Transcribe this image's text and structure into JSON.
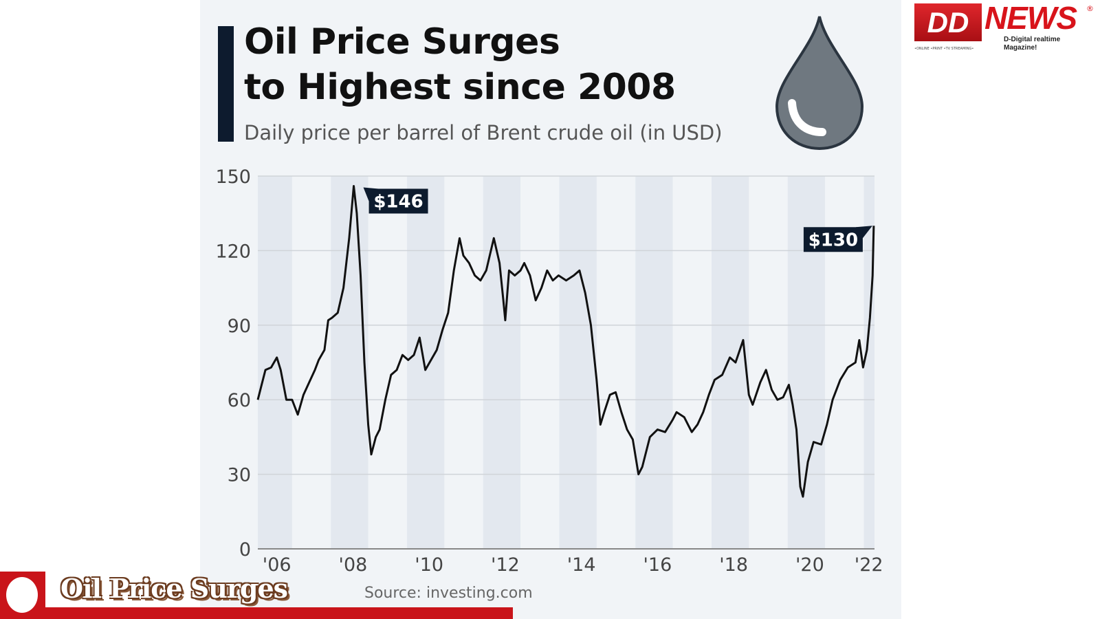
{
  "header": {
    "title_line1": "Oil Price Surges",
    "title_line2": "to Highest since 2008",
    "subtitle": "Daily price per barrel of Brent crude oil (in USD)"
  },
  "source": "Source: investing.com",
  "logo": {
    "dd": "DD",
    "news": "NEWS",
    "registered": "®",
    "tagline": "D-Digital realtime Magazine!",
    "channels": "•ONLINE •PRINT •TV STREAMING•"
  },
  "ticker": {
    "text": "Oil Price Surges"
  },
  "colors": {
    "line": "#111111",
    "accent": "#0d1b2e",
    "red": "#c9141a",
    "panel": "#f1f4f7"
  },
  "chart_data": {
    "type": "line",
    "title": "Oil Price Surges to Highest since 2008",
    "subtitle": "Daily price per barrel of Brent crude oil (in USD)",
    "xlabel": "",
    "ylabel": "",
    "xlim": [
      2006.0,
      2022.2
    ],
    "ylim": [
      0,
      150
    ],
    "yticks": [
      0,
      30,
      60,
      90,
      120,
      150
    ],
    "xtick_labels": [
      "'06",
      "'08",
      "'10",
      "'12",
      "'14",
      "'16",
      "'18",
      "'20",
      "'22"
    ],
    "xtick_years": [
      2006.5,
      2008.5,
      2010.5,
      2012.5,
      2014.5,
      2016.5,
      2018.5,
      2020.5,
      2022.05
    ],
    "grid": true,
    "annotations": [
      {
        "label": "$146",
        "x": 2008.52,
        "y": 146
      },
      {
        "label": "$130",
        "x": 2022.18,
        "y": 130
      }
    ],
    "series": [
      {
        "name": "Brent crude",
        "x": [
          2006.0,
          2006.1,
          2006.2,
          2006.35,
          2006.5,
          2006.6,
          2006.75,
          2006.9,
          2007.05,
          2007.2,
          2007.35,
          2007.5,
          2007.6,
          2007.75,
          2007.85,
          2007.95,
          2008.1,
          2008.25,
          2008.4,
          2008.52,
          2008.6,
          2008.7,
          2008.8,
          2008.9,
          2008.98,
          2009.1,
          2009.2,
          2009.35,
          2009.5,
          2009.65,
          2009.8,
          2009.95,
          2010.1,
          2010.25,
          2010.4,
          2010.55,
          2010.7,
          2010.85,
          2011.0,
          2011.15,
          2011.3,
          2011.4,
          2011.55,
          2011.7,
          2011.85,
          2012.0,
          2012.2,
          2012.35,
          2012.45,
          2012.5,
          2012.6,
          2012.75,
          2012.9,
          2013.0,
          2013.15,
          2013.3,
          2013.45,
          2013.6,
          2013.75,
          2013.9,
          2014.1,
          2014.3,
          2014.45,
          2014.6,
          2014.75,
          2014.9,
          2015.0,
          2015.1,
          2015.25,
          2015.4,
          2015.55,
          2015.7,
          2015.85,
          2016.0,
          2016.1,
          2016.3,
          2016.5,
          2016.7,
          2016.9,
          2017.0,
          2017.2,
          2017.4,
          2017.55,
          2017.7,
          2017.85,
          2018.0,
          2018.2,
          2018.4,
          2018.55,
          2018.75,
          2018.9,
          2019.0,
          2019.2,
          2019.35,
          2019.5,
          2019.65,
          2019.8,
          2019.95,
          2020.05,
          2020.15,
          2020.25,
          2020.32,
          2020.45,
          2020.6,
          2020.8,
          2020.95,
          2021.1,
          2021.3,
          2021.5,
          2021.7,
          2021.8,
          2021.9,
          2022.0,
          2022.08,
          2022.15,
          2022.18
        ],
        "y": [
          60,
          66,
          72,
          73,
          77,
          72,
          60,
          60,
          54,
          62,
          67,
          72,
          76,
          80,
          92,
          93,
          95,
          105,
          125,
          146,
          135,
          110,
          75,
          50,
          38,
          45,
          48,
          60,
          70,
          72,
          78,
          76,
          78,
          85,
          72,
          76,
          80,
          88,
          95,
          112,
          125,
          118,
          115,
          110,
          108,
          112,
          125,
          115,
          100,
          92,
          112,
          110,
          112,
          115,
          110,
          100,
          105,
          112,
          108,
          110,
          108,
          110,
          112,
          103,
          90,
          68,
          50,
          55,
          62,
          63,
          55,
          48,
          44,
          30,
          33,
          45,
          48,
          47,
          52,
          55,
          53,
          47,
          50,
          55,
          62,
          68,
          70,
          77,
          75,
          84,
          62,
          58,
          67,
          72,
          64,
          60,
          61,
          66,
          58,
          48,
          25,
          21,
          35,
          43,
          42,
          50,
          60,
          68,
          73,
          75,
          84,
          73,
          80,
          93,
          110,
          130
        ]
      }
    ]
  }
}
